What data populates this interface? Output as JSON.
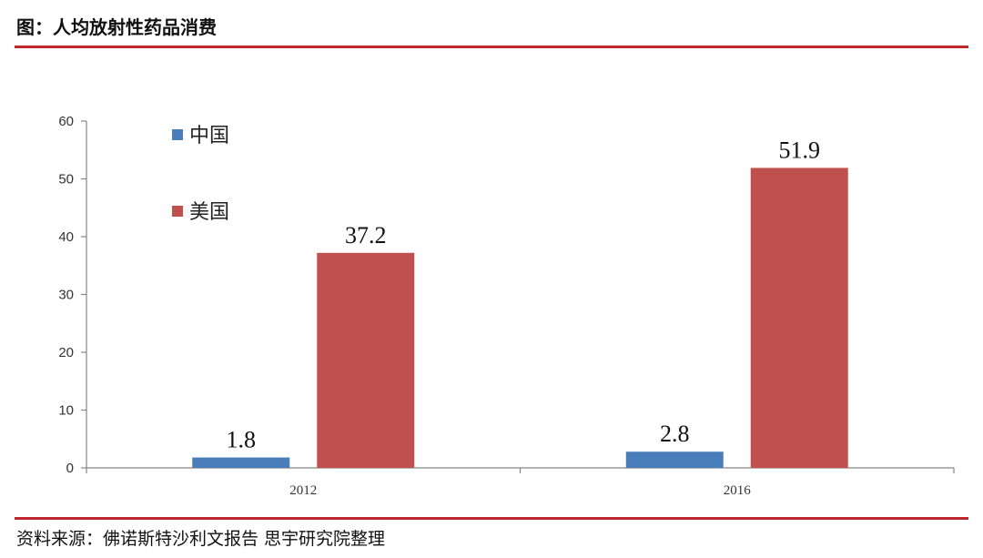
{
  "header": {
    "title": "图：人均放射性药品消费"
  },
  "footer": {
    "source": "资料来源：佛诺斯特沙利文报告 思宇研究院整理"
  },
  "chart_data": {
    "type": "bar",
    "categories": [
      "2012",
      "2016"
    ],
    "series": [
      {
        "name": "中国",
        "values": [
          1.8,
          2.8
        ],
        "color": "#4a7ebb"
      },
      {
        "name": "美国",
        "values": [
          37.2,
          51.9
        ],
        "color": "#c0504d"
      }
    ],
    "data_labels": [
      [
        "1.8",
        "2.8"
      ],
      [
        "37.2",
        "51.9"
      ]
    ],
    "yticks": [
      "0",
      "10",
      "20",
      "30",
      "40",
      "50",
      "60"
    ],
    "ylim": [
      0,
      60
    ],
    "legend_position": "top-left",
    "grid": false
  }
}
